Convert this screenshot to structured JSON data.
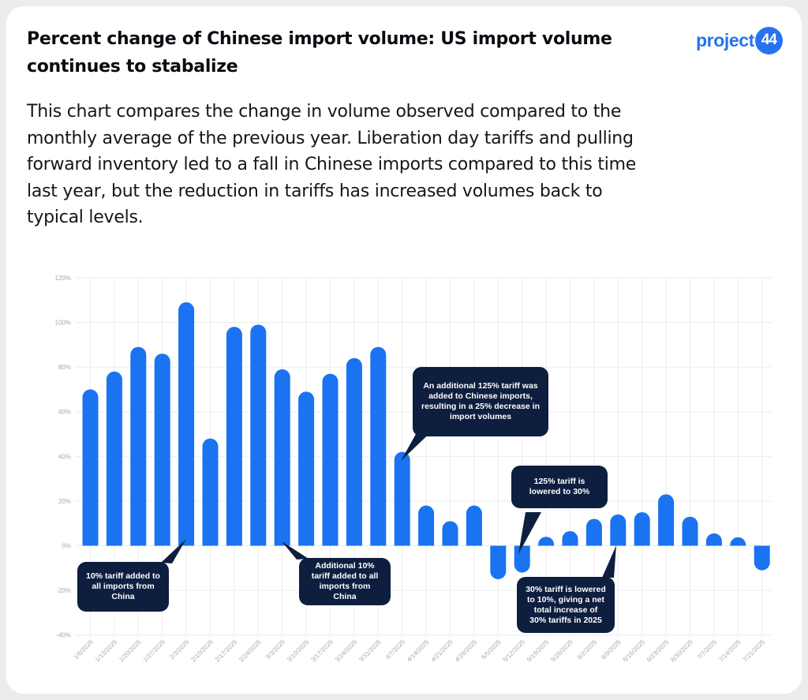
{
  "header": {
    "title": "Percent change of Chinese import volume: US import volume continues to stabalize",
    "description": "This chart compares the change in volume observed compared to the monthly average of the previous year. Liberation day tariffs and pulling forward inventory led to a fall in Chinese imports compared to this time last year, but the reduction in tariffs has increased volumes back to typical levels."
  },
  "logo": {
    "text": "project",
    "badge": "44"
  },
  "colors": {
    "bar": "#1a73f0",
    "callout": "#0e1e3f",
    "grid": "#ececec"
  },
  "chart_data": {
    "type": "bar",
    "categories": [
      "1/6/2025",
      "1/13/2025",
      "1/20/2025",
      "1/27/2025",
      "2/3/2025",
      "2/10/2025",
      "2/17/2025",
      "2/24/2025",
      "3/3/2025",
      "3/10/2025",
      "3/17/2025",
      "3/24/2025",
      "3/31/2025",
      "4/7/2025",
      "4/14/2025",
      "4/21/2025",
      "4/28/2025",
      "5/5/2025",
      "5/12/2025",
      "5/19/2025",
      "5/26/2025",
      "6/2/2025",
      "6/9/2025",
      "6/16/2025",
      "6/23/2025",
      "6/30/2025",
      "7/7/2025",
      "7/14/2025",
      "7/21/2025"
    ],
    "values": [
      70,
      78,
      89,
      86,
      109,
      48,
      98,
      99,
      79,
      69,
      77,
      84,
      89,
      42,
      18,
      11,
      18,
      -15,
      -12,
      1,
      6,
      12,
      14,
      15,
      23,
      13,
      4,
      0.5,
      -11
    ],
    "ylim": [
      -40,
      120
    ],
    "yticks": [
      "-40%",
      "-20%",
      "0%",
      "20%",
      "40%",
      "60%",
      "80%",
      "100%",
      "120%"
    ],
    "grid": true,
    "annotations": [
      {
        "text": "10% tariff added to all imports from China",
        "index": 4
      },
      {
        "text": "Additional 10% tariff added to all imports from China",
        "index": 8
      },
      {
        "text": "An additional 125% tariff was added to Chinese imports, resulting in a 25% decrease in import volumes",
        "index": 13
      },
      {
        "text": "125% tariff is lowered to 30%",
        "index": 18
      },
      {
        "text": "30% tariff is lowered to 10%, giving a net total increase of 30% tariffs in 2025",
        "index": 22
      }
    ]
  }
}
